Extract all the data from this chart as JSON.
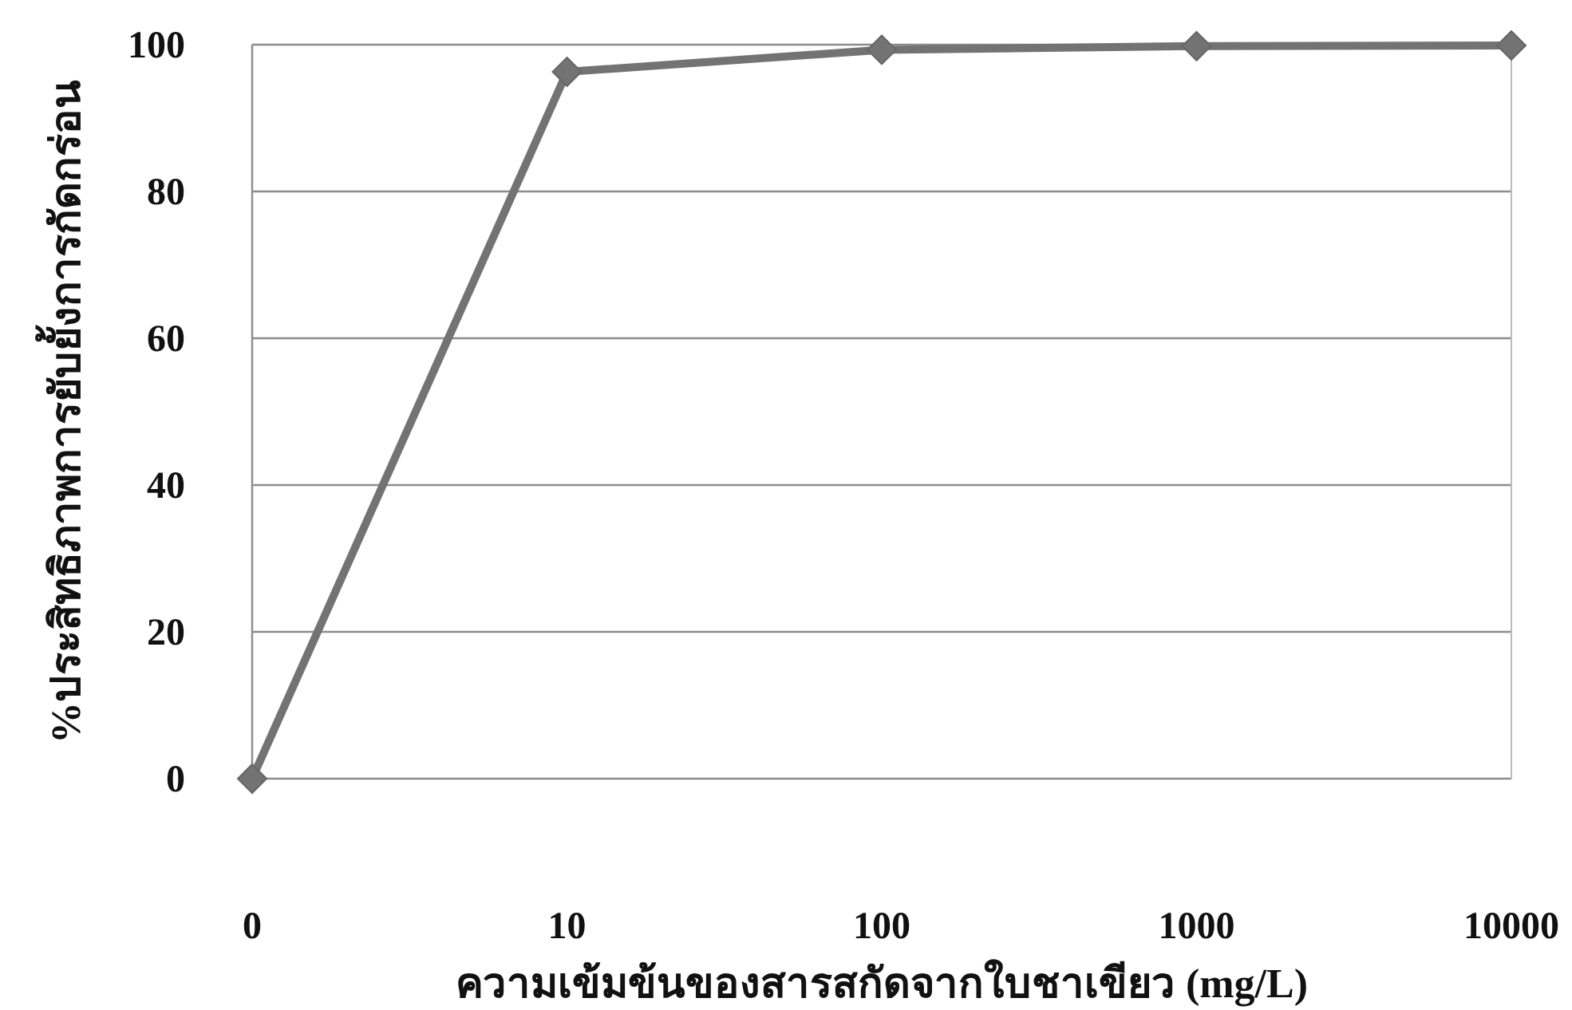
{
  "chart_data": {
    "type": "line",
    "xlabel": "ความเข้มข้นของสารสกัดจากใบชาเขียว (mg/L)",
    "ylabel": "%ประสิทธิภาพการยับยั้งการกัดกร่อน",
    "categories": [
      "0",
      "10",
      "100",
      "1000",
      "10000"
    ],
    "values": [
      0,
      96.3,
      99.3,
      99.8,
      99.9
    ],
    "color": "#737373",
    "ylim": [
      0,
      100
    ],
    "yticks": [
      0,
      20,
      40,
      60,
      80,
      100
    ],
    "grid": "y",
    "marker": "diamond",
    "line_style": "solid"
  }
}
